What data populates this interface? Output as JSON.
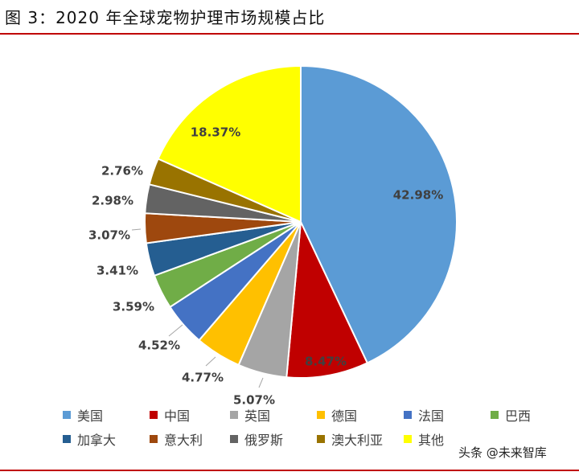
{
  "figure": {
    "title": "图 3：2020 年全球宠物护理市场规模占比"
  },
  "watermark": {
    "text": "头条 @未来智库"
  },
  "chart_data": {
    "type": "pie",
    "title": "图 3：2020 年全球宠物护理市场规模占比",
    "labels_unit": "%",
    "slices": [
      {
        "name": "美国",
        "value": 42.98,
        "label": "42.98%",
        "color": "#5B9BD5"
      },
      {
        "name": "中国",
        "value": 8.47,
        "label": "8.47%",
        "color": "#C00000"
      },
      {
        "name": "英国",
        "value": 5.07,
        "label": "5.07%",
        "color": "#A5A5A5"
      },
      {
        "name": "德国",
        "value": 4.77,
        "label": "4.77%",
        "color": "#FFC000"
      },
      {
        "name": "法国",
        "value": 4.52,
        "label": "4.52%",
        "color": "#4472C4"
      },
      {
        "name": "巴西",
        "value": 3.59,
        "label": "3.59%",
        "color": "#70AD47"
      },
      {
        "name": "加拿大",
        "value": 3.41,
        "label": "3.41%",
        "color": "#255E91"
      },
      {
        "name": "意大利",
        "value": 3.07,
        "label": "3.07%",
        "color": "#9E480E"
      },
      {
        "name": "俄罗斯",
        "value": 2.98,
        "label": "2.98%",
        "color": "#636363"
      },
      {
        "name": "澳大利亚",
        "value": 2.76,
        "label": "2.76%",
        "color": "#997300"
      },
      {
        "name": "其他",
        "value": 18.37,
        "label": "18.37%",
        "color": "#FFFF00"
      }
    ],
    "legend_position": "bottom"
  }
}
